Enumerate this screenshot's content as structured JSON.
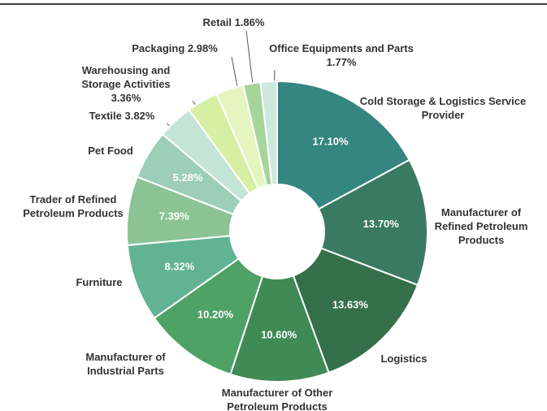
{
  "chart_data": {
    "type": "donut",
    "categories": [
      "Cold Storage & Logistics Service Provider",
      "Manufacturer of Refined Petroleum Products",
      "Logistics",
      "Manufacturer of Other Petroleum Products",
      "Manufacturer of Industrial Parts",
      "Furniture",
      "Trader of Refined Petroleum Products",
      "Pet Food",
      "Textile",
      "Warehousing and Storage Activities",
      "Packaging",
      "Retail",
      "Office Equipments and Parts"
    ],
    "values": [
      17.1,
      13.7,
      13.63,
      10.6,
      10.2,
      8.32,
      7.39,
      5.28,
      3.82,
      3.36,
      2.98,
      1.86,
      1.77
    ],
    "value_labels": [
      "17.10%",
      "13.70%",
      "13.63%",
      "10.60%",
      "10.20%",
      "8.32%",
      "7.39%",
      "5.28%",
      "3.82%",
      "3.36%",
      "2.98%",
      "1.86%",
      "1.77%"
    ],
    "colors": [
      "#358580",
      "#3a7a62",
      "#34704a",
      "#3f8a55",
      "#4ea265",
      "#62b294",
      "#8cc395",
      "#9dcfb8",
      "#c5e4d8",
      "#d6efa2",
      "#e4f5c0",
      "#a6d59a",
      "#cde8dc"
    ]
  }
}
